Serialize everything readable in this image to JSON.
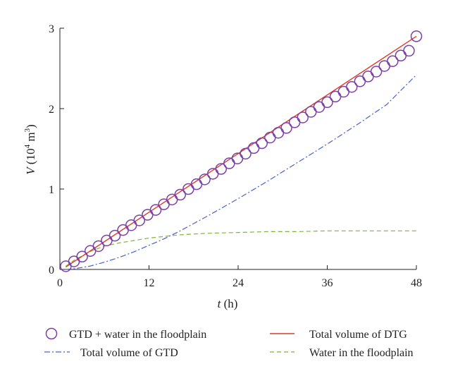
{
  "chart_data": {
    "type": "line",
    "xlabel": {
      "var": "t",
      "unit": " (h)"
    },
    "ylabel": {
      "var": "V",
      "unit_prefix": " (10",
      "unit_exp1": "4",
      "unit_mid": " m",
      "unit_exp2": "3",
      "unit_suffix": ")"
    },
    "xlim": [
      0,
      48
    ],
    "ylim": [
      0,
      3
    ],
    "xticks": [
      0,
      12,
      24,
      36,
      48
    ],
    "yticks": [
      0,
      1,
      2,
      3
    ],
    "xtick_labels": [
      "0",
      "12",
      "24",
      "36",
      "48"
    ],
    "ytick_labels": [
      "0",
      "1",
      "2",
      "3"
    ],
    "grid": false,
    "legend_position": "bottom",
    "series": [
      {
        "name": "GTD + water in the floodplain",
        "style": "circle-markers",
        "color": "#7b3fa6",
        "x": [
          0.8,
          1.9,
          3.0,
          4.1,
          5.2,
          6.3,
          7.4,
          8.5,
          9.6,
          10.7,
          11.8,
          12.9,
          14.0,
          15.1,
          16.2,
          17.3,
          18.4,
          19.5,
          20.6,
          21.7,
          22.8,
          23.9,
          25.0,
          26.1,
          27.2,
          28.3,
          29.4,
          30.5,
          31.6,
          32.7,
          33.8,
          34.9,
          36.0,
          37.1,
          38.2,
          39.3,
          40.4,
          41.5,
          42.6,
          43.7,
          44.8,
          45.9,
          47.0,
          48.0
        ],
        "y": [
          0.04,
          0.1,
          0.16,
          0.23,
          0.29,
          0.36,
          0.42,
          0.49,
          0.55,
          0.61,
          0.68,
          0.74,
          0.81,
          0.87,
          0.93,
          1.0,
          1.06,
          1.12,
          1.19,
          1.25,
          1.32,
          1.38,
          1.44,
          1.51,
          1.57,
          1.64,
          1.7,
          1.76,
          1.83,
          1.89,
          1.96,
          2.02,
          2.08,
          2.15,
          2.21,
          2.27,
          2.34,
          2.4,
          2.46,
          2.53,
          2.59,
          2.66,
          2.72,
          2.9
        ]
      },
      {
        "name": "Total volume of DTG",
        "style": "solid",
        "color": "#e03a2a",
        "x": [
          0.8,
          48
        ],
        "y": [
          0.03,
          2.9
        ]
      },
      {
        "name": "Total volume of GTD",
        "style": "dashdot",
        "color": "#4a5fd0",
        "x": [
          0.8,
          2,
          4,
          6,
          8,
          10,
          12,
          14,
          16,
          18,
          20,
          24,
          28,
          32,
          36,
          40,
          44,
          48
        ],
        "y": [
          0.0,
          0.01,
          0.04,
          0.09,
          0.15,
          0.22,
          0.3,
          0.38,
          0.47,
          0.57,
          0.67,
          0.88,
          1.1,
          1.33,
          1.56,
          1.8,
          2.05,
          2.42
        ]
      },
      {
        "name": "Water in the floodplain",
        "style": "dashed",
        "color": "#7fb33a",
        "x": [
          0.8,
          2,
          4,
          6,
          8,
          10,
          12,
          14,
          16,
          18,
          20,
          24,
          28,
          32,
          36,
          40,
          44,
          48
        ],
        "y": [
          0.04,
          0.12,
          0.22,
          0.29,
          0.33,
          0.36,
          0.39,
          0.41,
          0.43,
          0.44,
          0.45,
          0.46,
          0.47,
          0.47,
          0.48,
          0.48,
          0.48,
          0.48
        ]
      }
    ]
  }
}
